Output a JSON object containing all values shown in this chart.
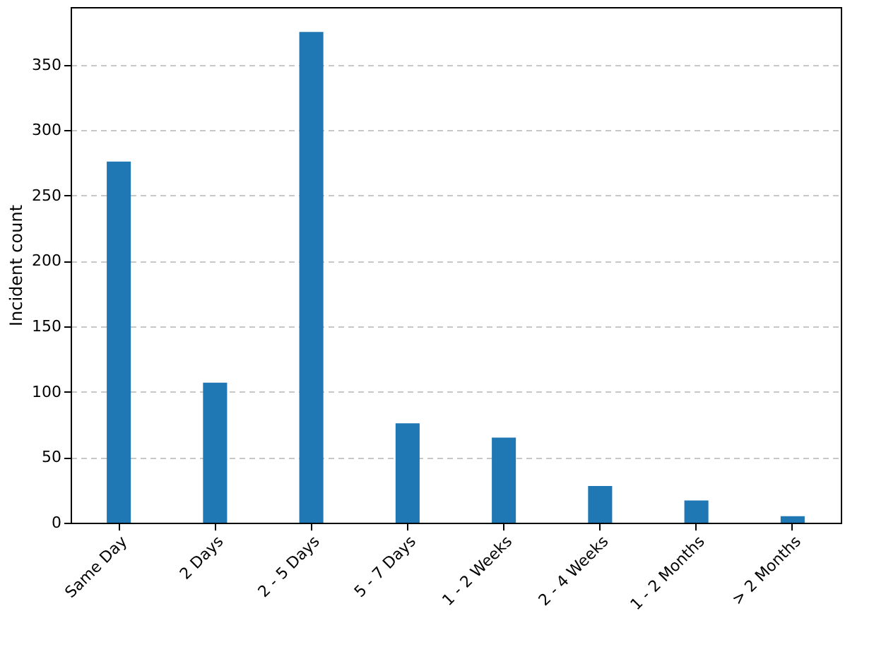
{
  "chart_data": {
    "type": "bar",
    "ylabel": "Incident count",
    "categories": [
      "Same Day",
      "2 Days",
      "2 - 5 Days",
      "5 - 7 Days",
      "1 - 2 Weeks",
      "2 - 4 Weeks",
      "1 - 2 Months",
      "> 2 Months"
    ],
    "values": [
      276,
      107,
      375,
      76,
      65,
      28,
      17,
      5
    ],
    "color": "#1f77b4",
    "ylim": [
      0,
      394
    ],
    "yticks": [
      0,
      50,
      100,
      150,
      200,
      250,
      300,
      350
    ],
    "grid": "y",
    "line_style": "dashed"
  }
}
